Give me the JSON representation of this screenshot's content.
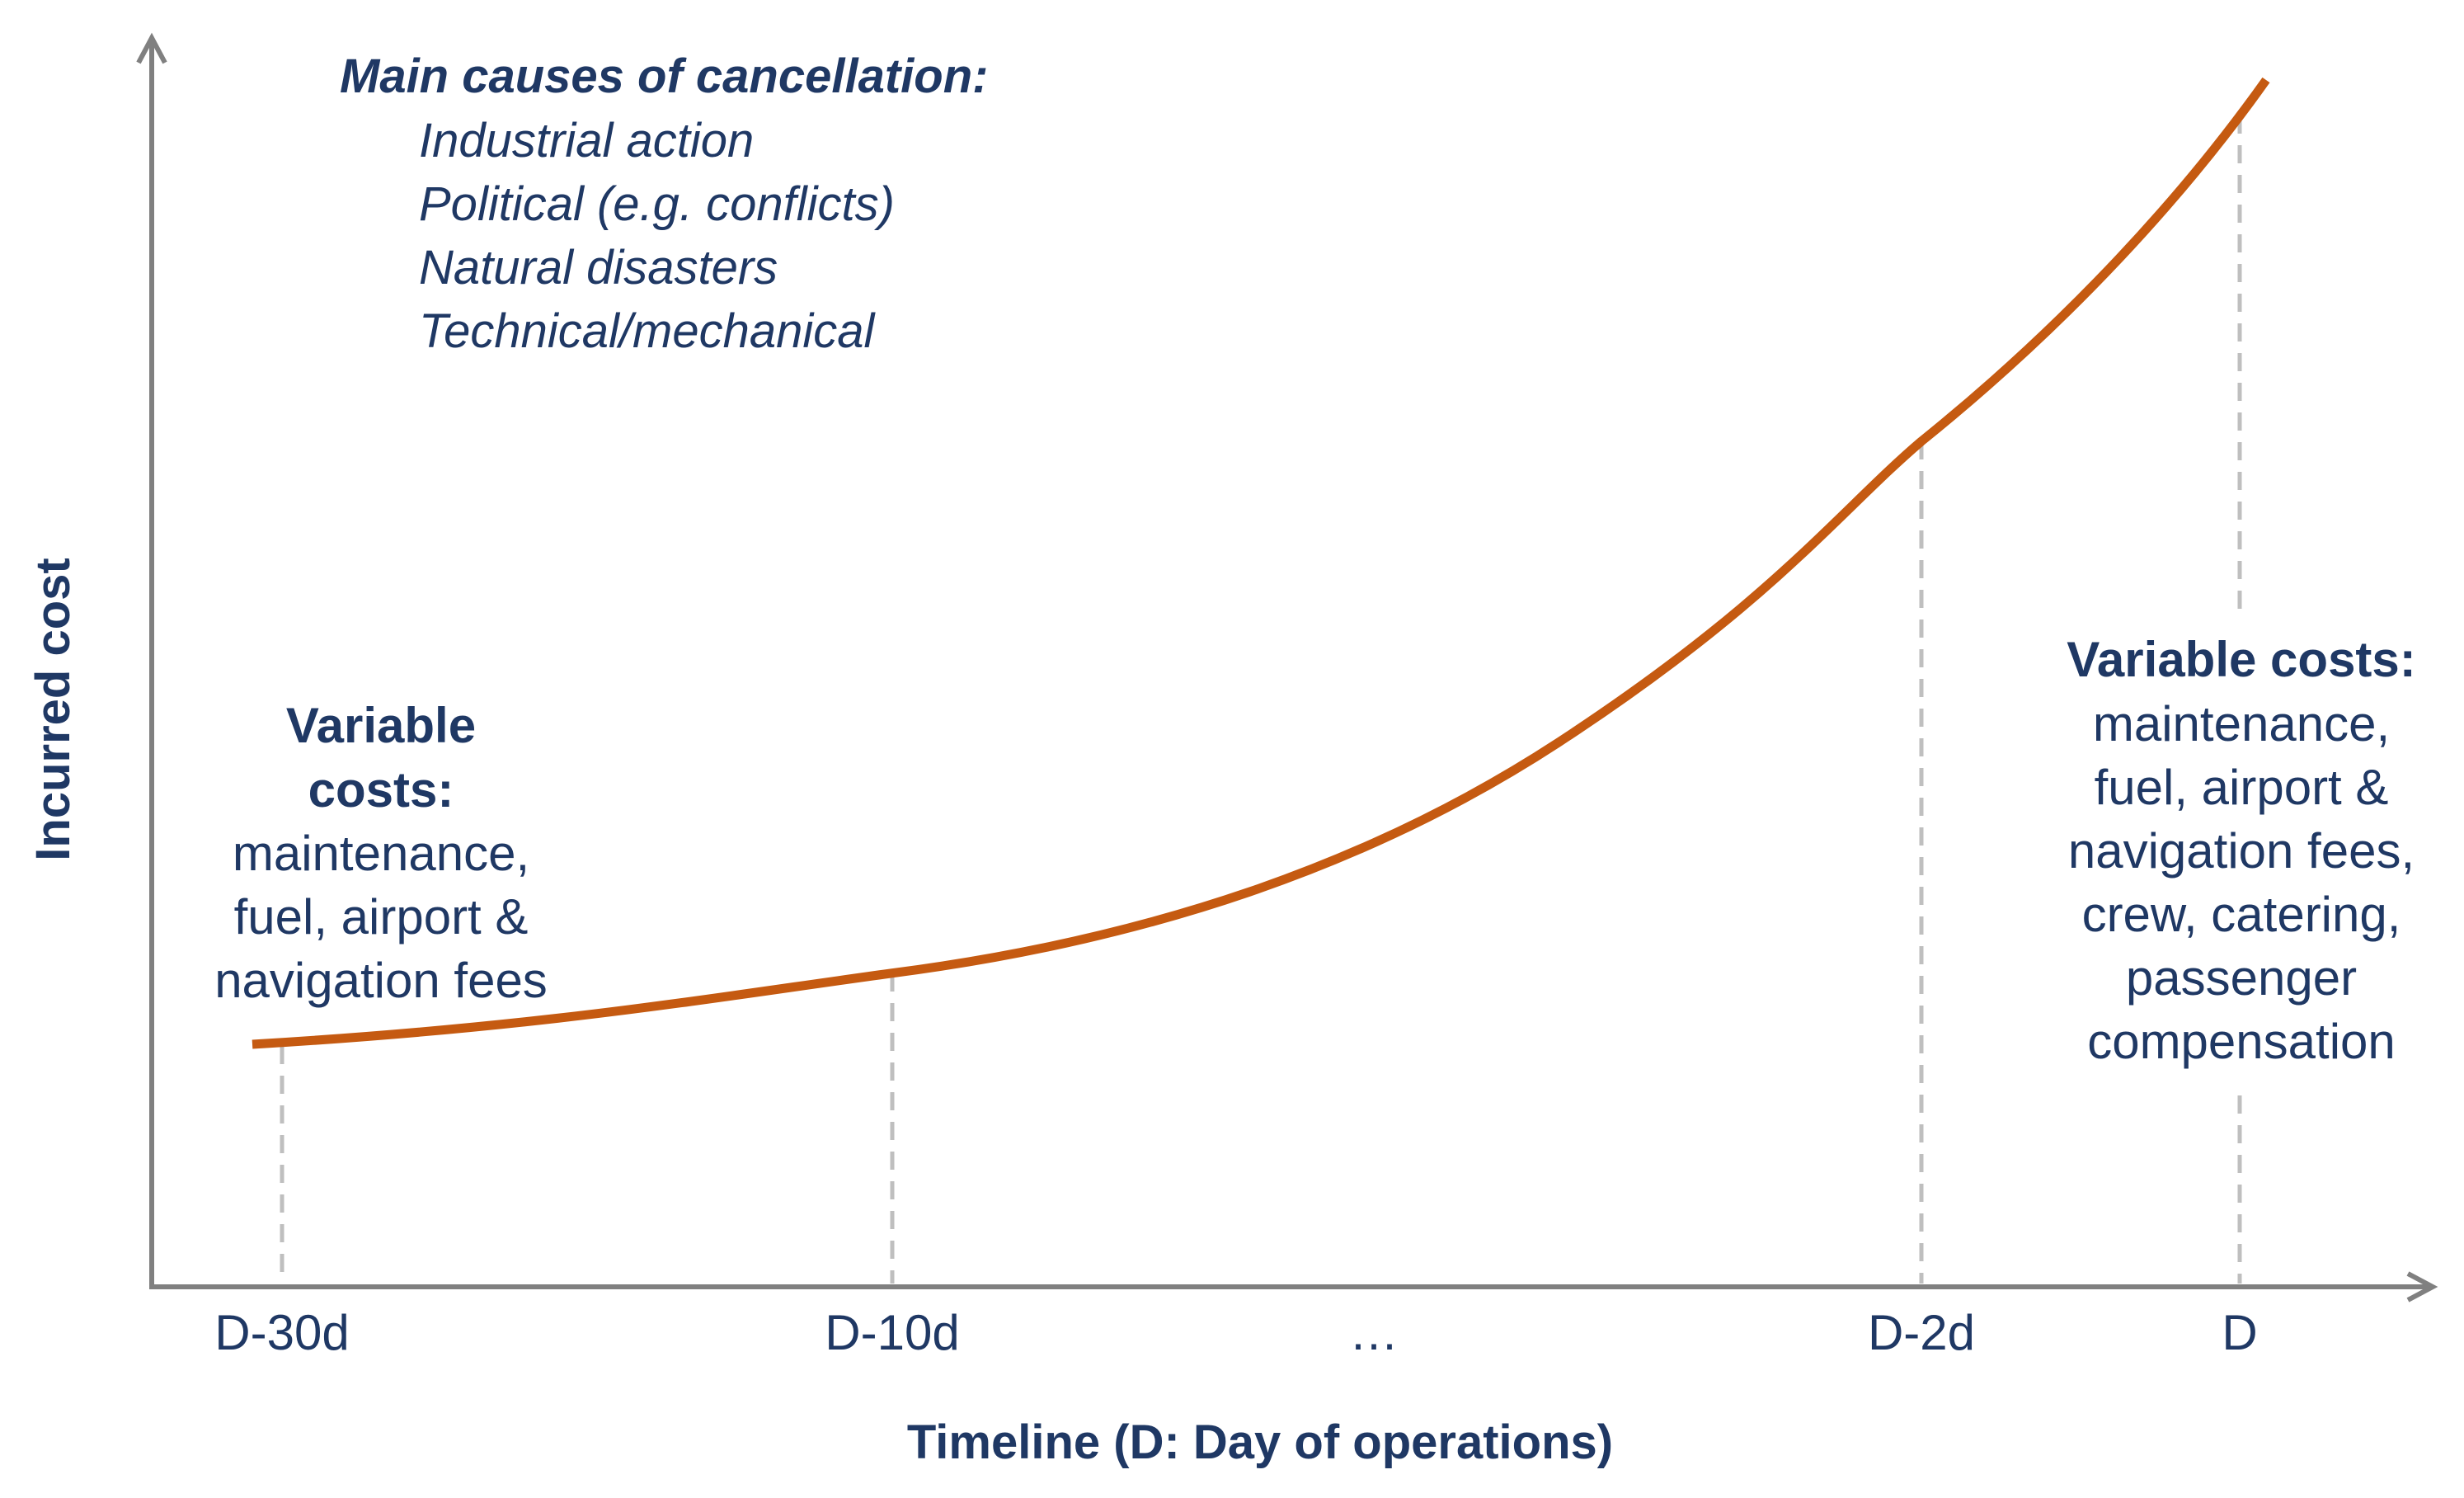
{
  "chart_data": {
    "type": "line",
    "xlabel": "Timeline (D: Day of operations)",
    "ylabel": "Incurred cost",
    "categories": [
      "D-30d",
      "D-10d",
      "…",
      "D-2d",
      "D"
    ],
    "series": [
      {
        "color": "#c55a11"
      }
    ],
    "grid": false,
    "reference_lines_at": [
      "D-30d",
      "D-10d",
      "D-2d",
      "D"
    ],
    "annotations": {
      "causes": {
        "title": "Main causes of cancellation:",
        "items": [
          "Industrial action",
          "Political (e.g. conflicts)",
          "Natural disasters",
          "Technical/mechanical"
        ]
      },
      "left_costs": {
        "title_lines": [
          "Variable",
          "costs:"
        ],
        "body_lines": [
          "maintenance,",
          "fuel, airport &",
          "navigation fees"
        ]
      },
      "right_costs": {
        "title_lines": [
          "Variable costs:"
        ],
        "body_lines": [
          "maintenance,",
          "fuel, airport &",
          "navigation fees,",
          "crew, catering,",
          "passenger",
          "compensation"
        ]
      }
    }
  },
  "colors": {
    "text": "#1f3864",
    "axis": "#808080",
    "curve": "#c55a11",
    "guide": "#bfbfbf"
  }
}
